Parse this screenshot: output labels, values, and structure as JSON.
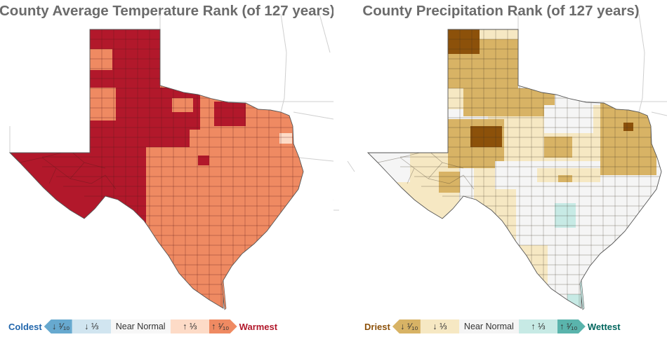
{
  "temperature": {
    "title": "County Average Temperature Rank (of 127 years)",
    "legend": {
      "low_label": "Coldest",
      "high_label": "Warmest",
      "low_color": "#2166ac",
      "high_color": "#b2182b",
      "bins": [
        {
          "label": "↓ ¹⁄₁₀",
          "color": "#67a9cf"
        },
        {
          "label": "↓ ⅓",
          "color": "#d1e5f0"
        },
        {
          "label": "Near Normal",
          "color": "#f7f7f7"
        },
        {
          "label": "↑ ⅓",
          "color": "#fddbc7"
        },
        {
          "label": "↑ ¹⁄₁₀",
          "color": "#ef8a62"
        }
      ]
    },
    "map_colors": {
      "warmest": "#b2182b",
      "upper_tenth": "#ef8a62",
      "upper_third": "#fddbc7"
    }
  },
  "precipitation": {
    "title": "County Precipitation Rank (of 127 years)",
    "legend": {
      "low_label": "Driest",
      "high_label": "Wettest",
      "low_color": "#8c510a",
      "high_color": "#01665e",
      "bins": [
        {
          "label": "↓ ¹⁄₁₀",
          "color": "#d8b365"
        },
        {
          "label": "↓ ⅓",
          "color": "#f6e8c3"
        },
        {
          "label": "Near Normal",
          "color": "#f5f5f5"
        },
        {
          "label": "↑ ⅓",
          "color": "#c7eae5"
        },
        {
          "label": "↑ ¹⁄₁₀",
          "color": "#5ab4ac"
        }
      ]
    },
    "map_colors": {
      "driest": "#8c510a",
      "lower_tenth": "#d8b365",
      "lower_third": "#f6e8c3",
      "normal": "#f5f5f5",
      "upper_third": "#c7eae5"
    }
  }
}
